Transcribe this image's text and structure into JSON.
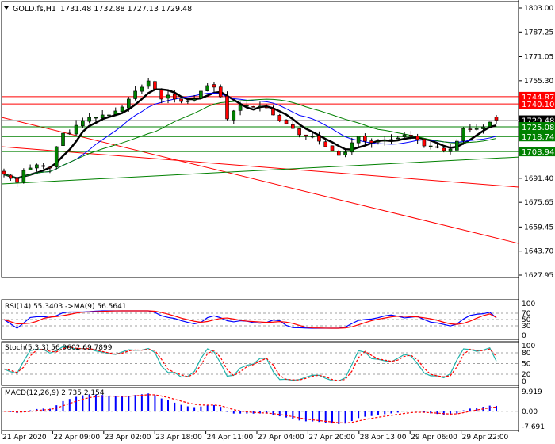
{
  "header": {
    "symbol_label": "GOLD.fs,H1",
    "ohlc_label": "1731.48 1732.88 1727.13 1729.48"
  },
  "chart_data": {
    "type": "candlestick",
    "symbol": "GOLD.fs",
    "timeframe": "H1",
    "last_ohlc": {
      "open": 1731.48,
      "high": 1732.88,
      "low": 1727.13,
      "close": 1729.48
    },
    "price_axis": {
      "range": [
        1627.95,
        1803.0
      ],
      "ticks": [
        "1803.00",
        "1787.25",
        "1771.05",
        "1755.30",
        "1691.40",
        "1675.65",
        "1659.45",
        "1643.70",
        "1627.95"
      ]
    },
    "time_axis": {
      "ticks": [
        "21 Apr 2020",
        "22 Apr 09:00",
        "23 Apr 02:00",
        "23 Apr 18:00",
        "24 Apr 11:00",
        "27 Apr 04:00",
        "27 Apr 20:00",
        "28 Apr 13:00",
        "29 Apr 06:00",
        "29 Apr 22:00"
      ]
    },
    "closes": [
      1694.0,
      1691.3,
      1688.7,
      1696.5,
      1698.1,
      1700.2,
      1699.1,
      1698.1,
      1712.1,
      1720.9,
      1720.9,
      1726.1,
      1729.2,
      1731.3,
      1731.3,
      1732.9,
      1732.9,
      1735.5,
      1738.1,
      1743.3,
      1748.5,
      1751.1,
      1755.2,
      1750.0,
      1743.3,
      1745.9,
      1743.3,
      1741.7,
      1742.2,
      1743.3,
      1748.5,
      1752.1,
      1751.1,
      1744.8,
      1730.3,
      1735.5,
      1739.1,
      1739.1,
      1738.1,
      1738.6,
      1737.6,
      1732.9,
      1729.2,
      1727.2,
      1724.0,
      1719.9,
      1718.9,
      1718.9,
      1715.7,
      1712.1,
      1709.5,
      1706.4,
      1708.5,
      1714.7,
      1718.9,
      1715.7,
      1714.7,
      1715.7,
      1716.3,
      1716.8,
      1717.8,
      1719.9,
      1718.9,
      1716.8,
      1712.6,
      1712.6,
      1711.6,
      1709.5,
      1710.5,
      1715.7,
      1724.0,
      1723.5,
      1724.0,
      1725.1,
      1728.2,
      1729.48
    ],
    "levels": [
      {
        "price": 1744.87,
        "label": "1744.87",
        "color": "#ff0000"
      },
      {
        "price": 1740.1,
        "label": "1740.10",
        "color": "#ff0000"
      },
      {
        "price": 1729.48,
        "label": "1729.48",
        "color": "#000000",
        "line_color": "#c0c0c0"
      },
      {
        "price": 1725.08,
        "label": "1725.08",
        "color": "#008000"
      },
      {
        "price": 1718.74,
        "label": "1718.74",
        "color": "#008000"
      },
      {
        "price": 1708.94,
        "label": "1708.94",
        "color": "#008000"
      }
    ],
    "trendlines": [
      {
        "from": 1731.3,
        "to": 1648.7,
        "color": "#ff0000"
      },
      {
        "from": 1712.1,
        "to": 1685.6,
        "color": "#ff0000"
      },
      {
        "from": 1687.7,
        "to": 1705.3,
        "color": "#008000"
      }
    ],
    "moving_averages": [
      {
        "color": "#000000"
      },
      {
        "color": "#0000ff"
      },
      {
        "color": "#008000"
      }
    ],
    "indicators": {
      "rsi": {
        "label": "RSI(14) 55.3403  ->MA(9) 56.5641",
        "value": 55.3403,
        "ma": 56.5641,
        "levels": [
          70,
          50,
          30
        ],
        "ticks": [
          "100",
          "70",
          "50",
          "30",
          "0"
        ],
        "color": "#0000ff",
        "ma_color": "#ff0000"
      },
      "stoch": {
        "label": "Stoch(5,3,3) 56.9602 69.7899",
        "k": 56.9602,
        "d": 69.7899,
        "levels": [
          80,
          50,
          20
        ],
        "ticks": [
          "100",
          "80",
          "50",
          "20",
          "0"
        ],
        "color": "#20b2aa",
        "d_color": "#ff0000"
      },
      "macd": {
        "label": "MACD(12,26,9) 2.735 2.154",
        "macd": 2.735,
        "signal": 2.154,
        "range": [
          -7.691,
          9.919
        ],
        "ticks": [
          "9.919",
          "0.00",
          "-7.691"
        ],
        "color": "#0000ff",
        "signal_color": "#ff0000"
      }
    }
  }
}
